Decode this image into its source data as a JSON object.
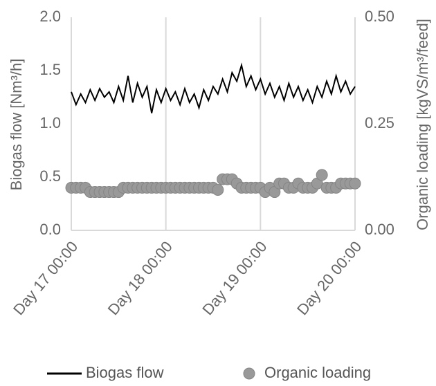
{
  "chart_data": {
    "type": "line",
    "x": [
      17.0,
      17.05,
      17.1,
      17.15,
      17.2,
      17.25,
      17.3,
      17.35,
      17.4,
      17.45,
      17.5,
      17.55,
      17.6,
      17.65,
      17.7,
      17.75,
      17.8,
      17.85,
      17.9,
      17.95,
      18.0,
      18.05,
      18.1,
      18.15,
      18.2,
      18.25,
      18.3,
      18.35,
      18.4,
      18.45,
      18.5,
      18.55,
      18.6,
      18.65,
      18.7,
      18.75,
      18.8,
      18.85,
      18.9,
      18.95,
      19.0,
      19.05,
      19.1,
      19.15,
      19.2,
      19.25,
      19.3,
      19.35,
      19.4,
      19.45,
      19.5,
      19.55,
      19.6,
      19.65,
      19.7,
      19.75,
      19.8,
      19.85,
      19.9,
      19.95,
      20.0
    ],
    "series": [
      {
        "name": "Biogas flow",
        "type": "line",
        "color": "#000000",
        "values": [
          1.3,
          1.18,
          1.28,
          1.2,
          1.32,
          1.22,
          1.33,
          1.25,
          1.3,
          1.2,
          1.35,
          1.22,
          1.45,
          1.2,
          1.38,
          1.25,
          1.35,
          1.1,
          1.32,
          1.2,
          1.33,
          1.22,
          1.3,
          1.18,
          1.33,
          1.2,
          1.28,
          1.15,
          1.32,
          1.22,
          1.35,
          1.28,
          1.42,
          1.3,
          1.48,
          1.4,
          1.55,
          1.35,
          1.45,
          1.32,
          1.42,
          1.28,
          1.38,
          1.25,
          1.35,
          1.22,
          1.38,
          1.25,
          1.35,
          1.22,
          1.32,
          1.2,
          1.35,
          1.25,
          1.4,
          1.28,
          1.45,
          1.3,
          1.4,
          1.28,
          1.35
        ]
      },
      {
        "name": "Organic loading",
        "type": "scatter",
        "color": "#999999",
        "axis": "y2",
        "values": [
          0.1,
          0.1,
          0.1,
          0.1,
          0.09,
          0.09,
          0.09,
          0.09,
          0.09,
          0.09,
          0.09,
          0.1,
          0.1,
          0.1,
          0.1,
          0.1,
          0.1,
          0.1,
          0.1,
          0.1,
          0.1,
          0.1,
          0.1,
          0.1,
          0.1,
          0.1,
          0.1,
          0.1,
          0.1,
          0.1,
          0.1,
          0.095,
          0.12,
          0.12,
          0.12,
          0.11,
          0.1,
          0.1,
          0.1,
          0.1,
          0.1,
          0.09,
          0.1,
          0.09,
          0.11,
          0.11,
          0.1,
          0.1,
          0.11,
          0.1,
          0.1,
          0.1,
          0.11,
          0.13,
          0.1,
          0.1,
          0.1,
          0.11,
          0.11,
          0.11,
          0.11
        ]
      }
    ],
    "y_label": "Biogas flow [Nm³/h]",
    "y2_label": "Organic loading [kgVS/m³/feed]",
    "xlim": [
      17,
      20
    ],
    "xticks": [
      {
        "value": 17,
        "label": "Day 17 00:00"
      },
      {
        "value": 18,
        "label": "Day 18 00:00"
      },
      {
        "value": 19,
        "label": "Day 19 00:00"
      },
      {
        "value": 20,
        "label": "Day 20 00:00"
      }
    ],
    "ylim": [
      0,
      2
    ],
    "yticks": [
      {
        "value": 0,
        "label": "0.0"
      },
      0.5,
      {
        "value": 1,
        "label": "1.0"
      },
      1.5,
      {
        "value": 2,
        "label": "2.0"
      }
    ],
    "y2lim": [
      0,
      0.5
    ],
    "y2ticks": [
      {
        "value": 0,
        "label": "0.00"
      },
      {
        "value": 0.25,
        "label": "0.25"
      },
      {
        "value": 0.5,
        "label": "0.50"
      }
    ],
    "grid": "x",
    "legend": "bottom"
  }
}
